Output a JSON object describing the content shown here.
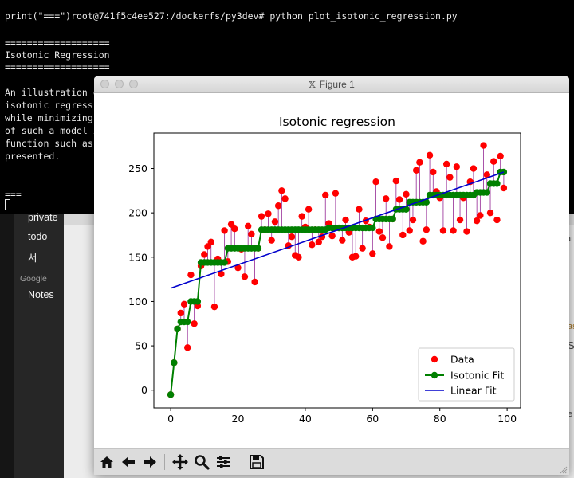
{
  "terminal": {
    "lines": [
      "print(\"===\")root@741f5c4ee527:/dockerfs/py3dev# python plot_isotonic_regression.py",
      "",
      "===================",
      "Isotonic Regression",
      "===================",
      "",
      "An illustration o",
      "isotonic regressi",
      "while minimizing",
      "of such a model i",
      "function such as",
      "presented.",
      "",
      "",
      "==="
    ]
  },
  "background_app": {
    "sidebar_items": [
      "private",
      "todo",
      "서"
    ],
    "group_label": "Google",
    "group_items": [
      "Notes"
    ],
    "edge_chars": [
      "at",
      "as",
      "S",
      "e"
    ]
  },
  "figure_window": {
    "title": "Figure 1",
    "toolbar": {
      "buttons": [
        "home",
        "back",
        "forward",
        "pan",
        "zoom",
        "subplots",
        "save"
      ]
    }
  },
  "chart_data": {
    "type": "scatter",
    "title": "Isotonic regression",
    "xlabel": "",
    "ylabel": "",
    "xlim": [
      -5,
      104
    ],
    "ylim": [
      -20,
      290
    ],
    "xticks": [
      0,
      20,
      40,
      60,
      80,
      100
    ],
    "yticks": [
      0,
      50,
      100,
      150,
      200,
      250
    ],
    "grid": false,
    "legend_position": "lower-right",
    "legend": [
      "Data",
      "Isotonic Fit",
      "Linear Fit"
    ],
    "colors": {
      "data": "#ff0000",
      "isotonic": "#008000",
      "linear": "#0000cc",
      "segments": "#800080"
    },
    "x": [
      0,
      1,
      2,
      3,
      4,
      5,
      6,
      7,
      8,
      9,
      10,
      11,
      12,
      13,
      14,
      15,
      16,
      17,
      18,
      19,
      20,
      21,
      22,
      23,
      24,
      25,
      26,
      27,
      28,
      29,
      30,
      31,
      32,
      33,
      34,
      35,
      36,
      37,
      38,
      39,
      40,
      41,
      42,
      43,
      44,
      45,
      46,
      47,
      48,
      49,
      50,
      51,
      52,
      53,
      54,
      55,
      56,
      57,
      58,
      59,
      60,
      61,
      62,
      63,
      64,
      65,
      66,
      67,
      68,
      69,
      70,
      71,
      72,
      73,
      74,
      75,
      76,
      77,
      78,
      79,
      80,
      81,
      82,
      83,
      84,
      85,
      86,
      87,
      88,
      89,
      90,
      91,
      92,
      93,
      94,
      95,
      96,
      97,
      98,
      99
    ],
    "series": [
      {
        "name": "Data",
        "values": [
          -5,
          31,
          69,
          87,
          97,
          48,
          130,
          75,
          95,
          140,
          153,
          162,
          167,
          94,
          148,
          131,
          180,
          145,
          187,
          182,
          138,
          159,
          128,
          185,
          176,
          122,
          160,
          196,
          181,
          199,
          169,
          190,
          208,
          225,
          216,
          163,
          173,
          152,
          150,
          196,
          184,
          204,
          164,
          181,
          167,
          173,
          220,
          188,
          174,
          222,
          183,
          169,
          192,
          178,
          150,
          151,
          204,
          160,
          191,
          184,
          154,
          235,
          179,
          172,
          216,
          162,
          193,
          236,
          215,
          175,
          221,
          180,
          192,
          248,
          257,
          168,
          181,
          265,
          246,
          224,
          217,
          180,
          255,
          240,
          180,
          252,
          192,
          217,
          179,
          235,
          250,
          191,
          197,
          276,
          243,
          200,
          258,
          192,
          264,
          228
        ]
      },
      {
        "name": "Isotonic Fit",
        "values": [
          -5,
          31,
          69,
          77,
          77,
          77,
          100,
          100,
          100,
          144,
          144,
          144,
          144,
          144,
          144,
          144,
          144,
          160,
          160,
          160,
          160,
          160,
          160,
          160,
          160,
          160,
          160,
          181,
          181,
          181,
          181,
          181,
          181,
          181,
          181,
          181,
          181,
          181,
          181,
          181,
          181,
          181,
          181,
          181,
          181,
          181,
          181,
          183,
          183,
          183,
          183,
          183,
          183,
          183,
          183,
          183,
          183,
          183,
          183,
          183,
          183,
          193,
          193,
          193,
          193,
          193,
          193,
          204,
          204,
          204,
          204,
          212,
          212,
          212,
          212,
          212,
          212,
          220,
          220,
          220,
          220,
          220,
          220,
          220,
          220,
          220,
          220,
          220,
          220,
          220,
          220,
          223,
          223,
          223,
          223,
          233,
          233,
          233,
          246,
          246
        ]
      },
      {
        "name": "Linear Fit",
        "values_at_x": {
          "x": [
            0,
            99
          ],
          "y": [
            115,
            246
          ]
        }
      }
    ]
  }
}
